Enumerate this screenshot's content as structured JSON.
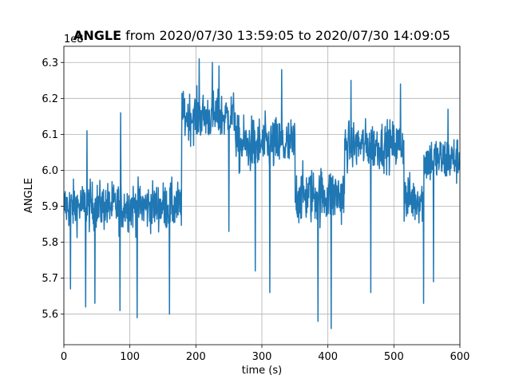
{
  "chart_data": {
    "type": "line",
    "title_bold": "ANGLE",
    "title_rest": " from 2020/07/30 13:59:05 to 2020/07/30 14:09:05",
    "xlabel": "time (s)",
    "ylabel": "ANGLE",
    "y_offset_label": "1e8",
    "xlim": [
      0,
      600
    ],
    "ylim": [
      5.515,
      6.345
    ],
    "x_ticks": [
      0,
      100,
      200,
      300,
      400,
      500,
      600
    ],
    "x_tick_labels": [
      "0",
      "100",
      "200",
      "300",
      "400",
      "500",
      "600"
    ],
    "y_ticks": [
      5.6,
      5.7,
      5.8,
      5.9,
      6.0,
      6.1,
      6.2,
      6.3
    ],
    "y_tick_labels": [
      "5.6",
      "5.7",
      "5.8",
      "5.9",
      "6.0",
      "6.1",
      "6.2",
      "6.3"
    ],
    "grid": true,
    "series": [
      {
        "color": "#1f77b4",
        "x_step": 1,
        "levels": [
          {
            "x_from": 0,
            "x_to": 178,
            "mean": 5.9,
            "spread": 0.06
          },
          {
            "x_from": 178,
            "x_to": 260,
            "mean": 6.15,
            "spread": 0.06
          },
          {
            "x_from": 260,
            "x_to": 350,
            "mean": 6.07,
            "spread": 0.07
          },
          {
            "x_from": 350,
            "x_to": 425,
            "mean": 5.93,
            "spread": 0.07
          },
          {
            "x_from": 425,
            "x_to": 515,
            "mean": 6.07,
            "spread": 0.06
          },
          {
            "x_from": 515,
            "x_to": 545,
            "mean": 5.92,
            "spread": 0.06
          },
          {
            "x_from": 545,
            "x_to": 600,
            "mean": 6.03,
            "spread": 0.06
          }
        ],
        "spikes": [
          {
            "x": 10,
            "y": 5.67
          },
          {
            "x": 33,
            "y": 5.62
          },
          {
            "x": 47,
            "y": 5.63
          },
          {
            "x": 85,
            "y": 5.61
          },
          {
            "x": 111,
            "y": 5.59
          },
          {
            "x": 160,
            "y": 5.6
          },
          {
            "x": 35,
            "y": 6.11
          },
          {
            "x": 86,
            "y": 6.16
          },
          {
            "x": 205,
            "y": 6.31
          },
          {
            "x": 225,
            "y": 6.3
          },
          {
            "x": 235,
            "y": 6.29
          },
          {
            "x": 330,
            "y": 6.28
          },
          {
            "x": 312,
            "y": 5.66
          },
          {
            "x": 385,
            "y": 5.58
          },
          {
            "x": 405,
            "y": 5.56
          },
          {
            "x": 465,
            "y": 5.66
          },
          {
            "x": 545,
            "y": 5.63
          },
          {
            "x": 435,
            "y": 6.25
          },
          {
            "x": 510,
            "y": 6.24
          },
          {
            "x": 582,
            "y": 6.17
          },
          {
            "x": 250,
            "y": 5.83
          },
          {
            "x": 290,
            "y": 5.72
          },
          {
            "x": 560,
            "y": 5.69
          }
        ]
      }
    ]
  }
}
